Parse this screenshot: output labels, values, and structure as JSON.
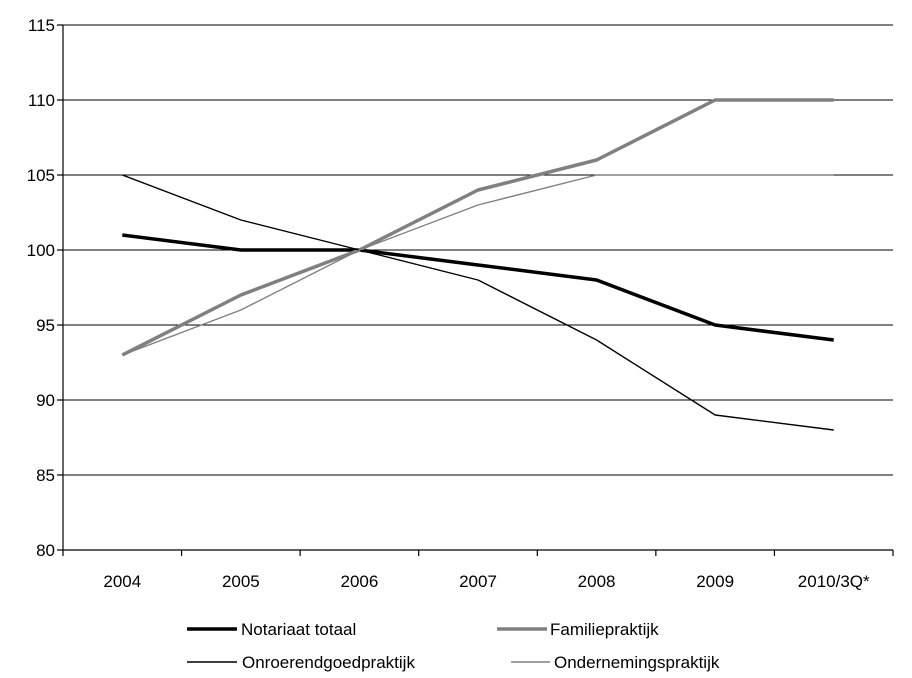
{
  "chart_data": {
    "type": "line",
    "title": "",
    "xlabel": "",
    "ylabel": "",
    "categories": [
      "2004",
      "2005",
      "2006",
      "2007",
      "2008",
      "2009",
      "2010/3Q*"
    ],
    "ylim": [
      80,
      115
    ],
    "yticks": [
      80,
      85,
      90,
      95,
      100,
      105,
      110,
      115
    ],
    "grid": true,
    "legend_position": "bottom",
    "series": [
      {
        "name": "Notariaat totaal",
        "color": "#000000",
        "values": [
          101,
          100,
          100,
          99,
          98,
          95,
          94
        ]
      },
      {
        "name": "Familiepraktijk",
        "color": "#808080",
        "values": [
          93,
          97,
          100,
          104,
          106,
          110,
          110
        ]
      },
      {
        "name": "Onroerendgoedpraktijk",
        "color": "#000000",
        "values": [
          105,
          102,
          100,
          98,
          94,
          89,
          88
        ]
      },
      {
        "name": "Ondernemingspraktijk",
        "color": "#808080",
        "values": [
          93,
          96,
          100,
          103,
          105,
          105,
          105
        ]
      }
    ]
  }
}
